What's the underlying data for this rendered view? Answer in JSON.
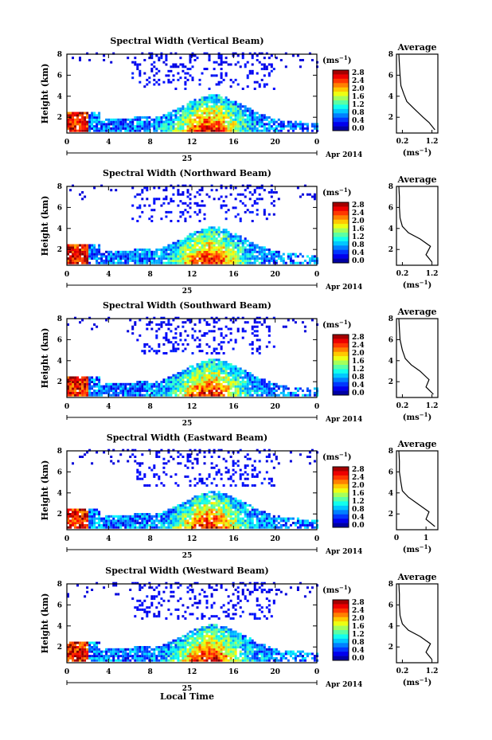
{
  "figure": {
    "xlabel": "Local Time",
    "date_day": "25",
    "date_month_year": "Apr 2014",
    "colorbar_unit": "(ms",
    "colorbar_unit_exp": "−1",
    "colorbar_ticks": [
      "2.8",
      "2.4",
      "2.0",
      "1.6",
      "1.2",
      "0.8",
      "0.4",
      "0.0"
    ],
    "avg_title": "Average",
    "avg_unit": "(ms",
    "avg_unit_exp": "−1",
    "colors": {
      "grid": "#000000",
      "bg": "#ffffff"
    }
  },
  "chart_data": [
    {
      "type": "heatmap",
      "title": "Spectral Width (Vertical Beam)",
      "ylabel": "Height (km)",
      "xlabel": "",
      "x_ticks": [
        "0",
        "4",
        "8",
        "12",
        "16",
        "20",
        "0"
      ],
      "xlim": [
        0,
        24
      ],
      "ylim": [
        0.5,
        8
      ],
      "y_ticks": [
        "2",
        "4",
        "6",
        "8"
      ],
      "colorbar": {
        "min": 0.0,
        "max": 2.8
      },
      "average": {
        "x_ticks": [
          "0.2",
          "1.2"
        ],
        "xlim": [
          0.0,
          1.4
        ],
        "y_ticks": [
          "2",
          "4",
          "6",
          "8"
        ],
        "profile": [
          [
            1.3,
            0.8
          ],
          [
            1.1,
            1.5
          ],
          [
            0.9,
            2.0
          ],
          [
            0.6,
            2.8
          ],
          [
            0.35,
            3.5
          ],
          [
            0.25,
            4.2
          ],
          [
            0.15,
            5.0
          ],
          [
            0.12,
            6.0
          ],
          [
            0.1,
            7.0
          ],
          [
            0.08,
            8.0
          ]
        ]
      }
    },
    {
      "type": "heatmap",
      "title": "Spectral Width (Northward Beam)",
      "ylabel": "Height (km)",
      "xlabel": "",
      "x_ticks": [
        "0",
        "4",
        "8",
        "12",
        "16",
        "20",
        "0"
      ],
      "xlim": [
        0,
        24
      ],
      "ylim": [
        0.5,
        8
      ],
      "y_ticks": [
        "2",
        "4",
        "6",
        "8"
      ],
      "colorbar": {
        "min": 0.0,
        "max": 2.8
      },
      "average": {
        "x_ticks": [
          "0.2",
          "1.2"
        ],
        "xlim": [
          0.0,
          1.4
        ],
        "y_ticks": [
          "2",
          "4",
          "6",
          "8"
        ],
        "profile": [
          [
            1.2,
            0.8
          ],
          [
            1.0,
            1.5
          ],
          [
            1.15,
            2.3
          ],
          [
            0.8,
            3.0
          ],
          [
            0.4,
            3.6
          ],
          [
            0.2,
            4.2
          ],
          [
            0.12,
            5.0
          ],
          [
            0.1,
            6.0
          ],
          [
            0.1,
            7.0
          ],
          [
            0.08,
            8.0
          ]
        ]
      }
    },
    {
      "type": "heatmap",
      "title": "Spectral Width (Southward Beam)",
      "ylabel": "Height (km)",
      "xlabel": "",
      "x_ticks": [
        "0",
        "4",
        "8",
        "12",
        "16",
        "20",
        "0"
      ],
      "xlim": [
        0,
        24
      ],
      "ylim": [
        0.5,
        8
      ],
      "y_ticks": [
        "2",
        "4",
        "6",
        "8"
      ],
      "colorbar": {
        "min": 0.0,
        "max": 2.8
      },
      "average": {
        "x_ticks": [
          "0.2",
          "1.2"
        ],
        "xlim": [
          0.0,
          1.4
        ],
        "y_ticks": [
          "2",
          "4",
          "6",
          "8"
        ],
        "profile": [
          [
            1.25,
            0.8
          ],
          [
            1.0,
            1.5
          ],
          [
            1.1,
            2.2
          ],
          [
            0.8,
            3.0
          ],
          [
            0.5,
            3.6
          ],
          [
            0.3,
            4.2
          ],
          [
            0.2,
            5.0
          ],
          [
            0.12,
            6.0
          ],
          [
            0.1,
            7.0
          ],
          [
            0.08,
            8.0
          ]
        ]
      }
    },
    {
      "type": "heatmap",
      "title": "Spectral Width (Eastward Beam)",
      "ylabel": "Height (km)",
      "xlabel": "",
      "x_ticks": [
        "0",
        "4",
        "8",
        "12",
        "16",
        "20",
        "0"
      ],
      "xlim": [
        0,
        24
      ],
      "ylim": [
        0.5,
        8
      ],
      "y_ticks": [
        "2",
        "4",
        "6",
        "8"
      ],
      "colorbar": {
        "min": 0.0,
        "max": 2.8
      },
      "average": {
        "x_ticks": [
          "0",
          "1"
        ],
        "xlim": [
          0.0,
          1.4
        ],
        "y_ticks": [
          "2",
          "4",
          "6",
          "8"
        ],
        "profile": [
          [
            1.3,
            0.8
          ],
          [
            1.0,
            1.5
          ],
          [
            1.1,
            2.2
          ],
          [
            0.7,
            3.0
          ],
          [
            0.4,
            3.6
          ],
          [
            0.2,
            4.2
          ],
          [
            0.15,
            5.0
          ],
          [
            0.1,
            6.0
          ],
          [
            0.1,
            7.0
          ],
          [
            0.08,
            8.0
          ]
        ]
      }
    },
    {
      "type": "heatmap",
      "title": "Spectral Width (Westward Beam)",
      "ylabel": "Height (km)",
      "xlabel": "Local Time",
      "x_ticks": [
        "0",
        "4",
        "8",
        "12",
        "16",
        "20",
        "0"
      ],
      "xlim": [
        0,
        24
      ],
      "ylim": [
        0.5,
        8
      ],
      "y_ticks": [
        "2",
        "4",
        "6",
        "8"
      ],
      "colorbar": {
        "min": 0.0,
        "max": 2.8
      },
      "average": {
        "x_ticks": [
          "0.2",
          "1.2"
        ],
        "xlim": [
          0.0,
          1.4
        ],
        "y_ticks": [
          "2",
          "4",
          "6",
          "8"
        ],
        "profile": [
          [
            1.2,
            0.8
          ],
          [
            1.0,
            1.5
          ],
          [
            1.15,
            2.3
          ],
          [
            0.8,
            3.0
          ],
          [
            0.4,
            3.6
          ],
          [
            0.2,
            4.2
          ],
          [
            0.12,
            5.0
          ],
          [
            0.1,
            6.0
          ],
          [
            0.1,
            7.0
          ],
          [
            0.08,
            8.0
          ]
        ]
      }
    }
  ]
}
